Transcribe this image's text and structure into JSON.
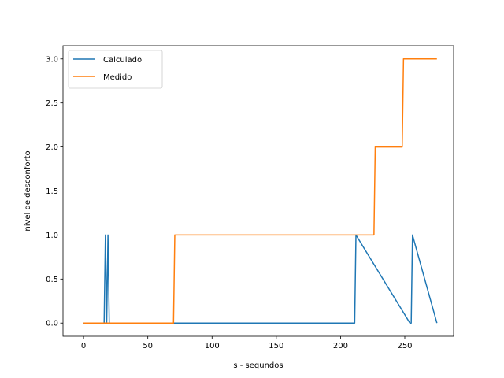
{
  "chart_data": {
    "type": "line",
    "xlabel": "s - segundos",
    "ylabel": "nível de desconforto",
    "xlim": [
      -16,
      288
    ],
    "ylim": [
      -0.15,
      3.15
    ],
    "xticks": [
      0,
      50,
      100,
      150,
      200,
      250
    ],
    "yticks": [
      0.0,
      0.5,
      1.0,
      1.5,
      2.0,
      2.5,
      3.0
    ],
    "xtick_labels": [
      "0",
      "50",
      "100",
      "150",
      "200",
      "250"
    ],
    "ytick_labels": [
      "0.0",
      "0.5",
      "1.0",
      "1.5",
      "2.0",
      "2.5",
      "3.0"
    ],
    "grid": false,
    "legend_position": "top-left",
    "series": [
      {
        "name": "Calculado",
        "color": "#1f77b4",
        "x": [
          0,
          16,
          17,
          18,
          19,
          20,
          70,
          210,
          211,
          212,
          254,
          255,
          256,
          275
        ],
        "y": [
          0,
          0,
          1,
          0,
          1,
          0,
          0,
          0,
          0,
          1,
          0,
          0,
          1,
          0
        ]
      },
      {
        "name": "Medido",
        "color": "#ff7f0e",
        "x": [
          0,
          70,
          71,
          226,
          227,
          248,
          249,
          275
        ],
        "y": [
          0,
          0,
          1,
          1,
          2,
          2,
          3,
          3
        ]
      }
    ]
  }
}
